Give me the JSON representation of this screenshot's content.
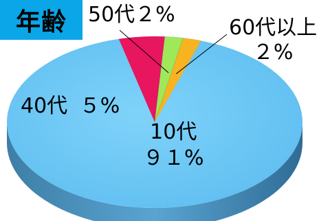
{
  "chart_data": {
    "type": "pie",
    "title": "年齢",
    "slices": [
      {
        "category": "10代",
        "percent_label": "９１%",
        "value": 91,
        "color": "#66c4f2"
      },
      {
        "category": "40代",
        "percent_label": "５%",
        "value": 5,
        "color": "#e8155f"
      },
      {
        "category": "50代",
        "percent_label": "２%",
        "value": 2,
        "color": "#9ee85a"
      },
      {
        "category": "60代以上",
        "percent_label": "２%",
        "value": 2,
        "color": "#f7b420"
      }
    ],
    "title_background": "#0aa6e8"
  }
}
